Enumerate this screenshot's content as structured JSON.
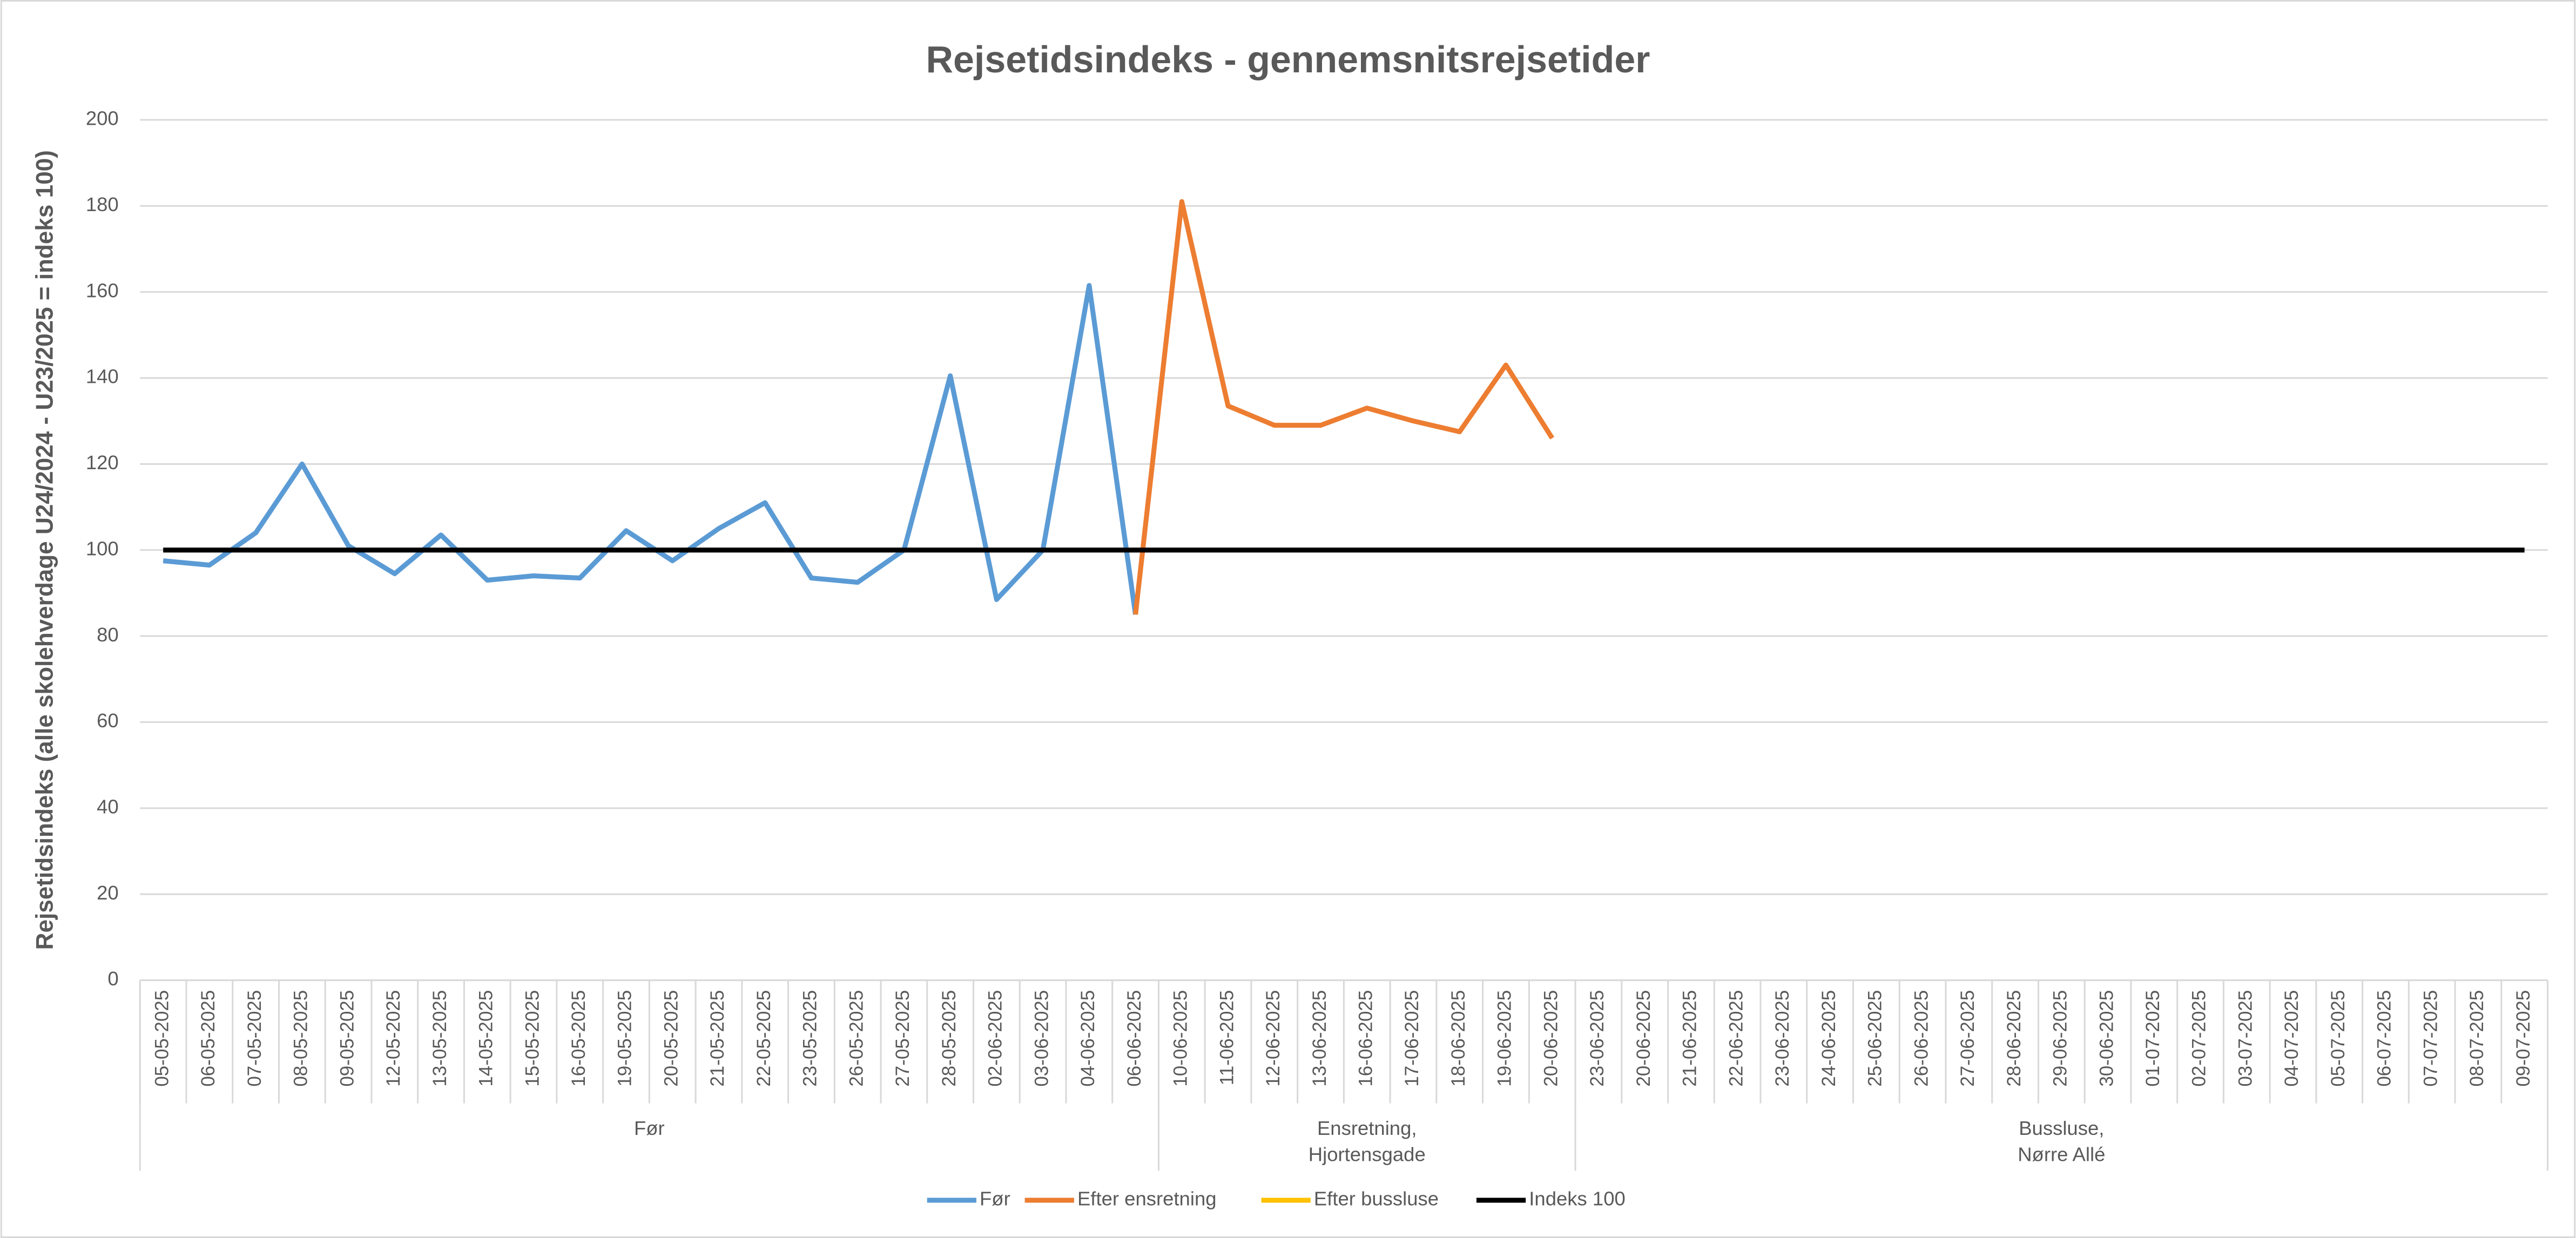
{
  "chart_data": {
    "type": "line",
    "title": "Rejsetidsindeks - gennemsnitsrejsetider",
    "y_label": "Rejsetidsindeks (alle skolehverdage U24/2024 - U23/2025 = indeks 100)",
    "groups": [
      {
        "label": [
          "Før"
        ],
        "categories": [
          "05-05-2025",
          "06-05-2025",
          "07-05-2025",
          "08-05-2025",
          "09-05-2025",
          "12-05-2025",
          "13-05-2025",
          "14-05-2025",
          "15-05-2025",
          "16-05-2025",
          "19-05-2025",
          "20-05-2025",
          "21-05-2025",
          "22-05-2025",
          "23-05-2025",
          "26-05-2025",
          "27-05-2025",
          "28-05-2025",
          "02-06-2025",
          "03-06-2025",
          "04-06-2025",
          "06-06-2025"
        ]
      },
      {
        "label": [
          "Ensretning,",
          "Hjortensgade"
        ],
        "categories": [
          "10-06-2025",
          "11-06-2025",
          "12-06-2025",
          "13-06-2025",
          "16-06-2025",
          "17-06-2025",
          "18-06-2025",
          "19-06-2025",
          "20-06-2025"
        ]
      },
      {
        "label": [
          "Bussluse,",
          "Nørre Allé"
        ],
        "categories": [
          "23-06-2025",
          "20-06-2025",
          "21-06-2025",
          "22-06-2025",
          "23-06-2025",
          "24-06-2025",
          "25-06-2025",
          "26-06-2025",
          "27-06-2025",
          "28-06-2025",
          "29-06-2025",
          "30-06-2025",
          "01-07-2025",
          "02-07-2025",
          "03-07-2025",
          "04-07-2025",
          "05-07-2025",
          "06-07-2025",
          "07-07-2025",
          "08-07-2025",
          "09-07-2025"
        ]
      }
    ],
    "series": [
      {
        "name": "Før",
        "color": "#5b9bd5",
        "width": 3,
        "values": [
          97.5,
          96.5,
          104,
          120,
          101,
          94.5,
          103.5,
          93,
          94,
          93.5,
          104.5,
          97.5,
          105,
          111,
          93.5,
          92.5,
          100,
          140.5,
          88.5,
          100,
          161.5,
          85,
          null,
          null,
          null,
          null,
          null,
          null,
          null,
          null,
          null,
          null,
          null,
          null,
          null,
          null,
          null,
          null,
          null,
          null,
          null,
          null,
          null,
          null,
          null,
          null,
          null,
          null,
          null,
          null,
          null,
          null
        ]
      },
      {
        "name": "Efter ensretning",
        "color": "#ed7d31",
        "width": 3,
        "values": [
          null,
          null,
          null,
          null,
          null,
          null,
          null,
          null,
          null,
          null,
          null,
          null,
          null,
          null,
          null,
          null,
          null,
          null,
          null,
          null,
          null,
          85,
          181,
          133.5,
          129,
          129,
          133,
          130,
          127.5,
          143,
          126,
          null,
          null,
          null,
          null,
          null,
          null,
          null,
          null,
          null,
          null,
          null,
          null,
          null,
          null,
          null,
          null,
          null,
          null,
          null,
          null,
          null
        ]
      },
      {
        "name": "Efter bussluse",
        "color": "#ffc000",
        "width": 3,
        "values": [
          null,
          null,
          null,
          null,
          null,
          null,
          null,
          null,
          null,
          null,
          null,
          null,
          null,
          null,
          null,
          null,
          null,
          null,
          null,
          null,
          null,
          null,
          null,
          null,
          null,
          null,
          null,
          null,
          null,
          null,
          null,
          null,
          null,
          null,
          null,
          null,
          null,
          null,
          null,
          null,
          null,
          null,
          null,
          null,
          null,
          null,
          null,
          null,
          null,
          null,
          null,
          null
        ]
      },
      {
        "name": "Indeks 100",
        "color": "#000000",
        "width": 3,
        "values": [
          100,
          100,
          100,
          100,
          100,
          100,
          100,
          100,
          100,
          100,
          100,
          100,
          100,
          100,
          100,
          100,
          100,
          100,
          100,
          100,
          100,
          100,
          100,
          100,
          100,
          100,
          100,
          100,
          100,
          100,
          100,
          100,
          100,
          100,
          100,
          100,
          100,
          100,
          100,
          100,
          100,
          100,
          100,
          100,
          100,
          100,
          100,
          100,
          100,
          100,
          100,
          100
        ]
      }
    ],
    "ylim": [
      0,
      200
    ],
    "yticks": [
      0,
      20,
      40,
      60,
      80,
      100,
      120,
      140,
      160,
      180,
      200
    ],
    "grid": true,
    "legend": "bottom"
  }
}
